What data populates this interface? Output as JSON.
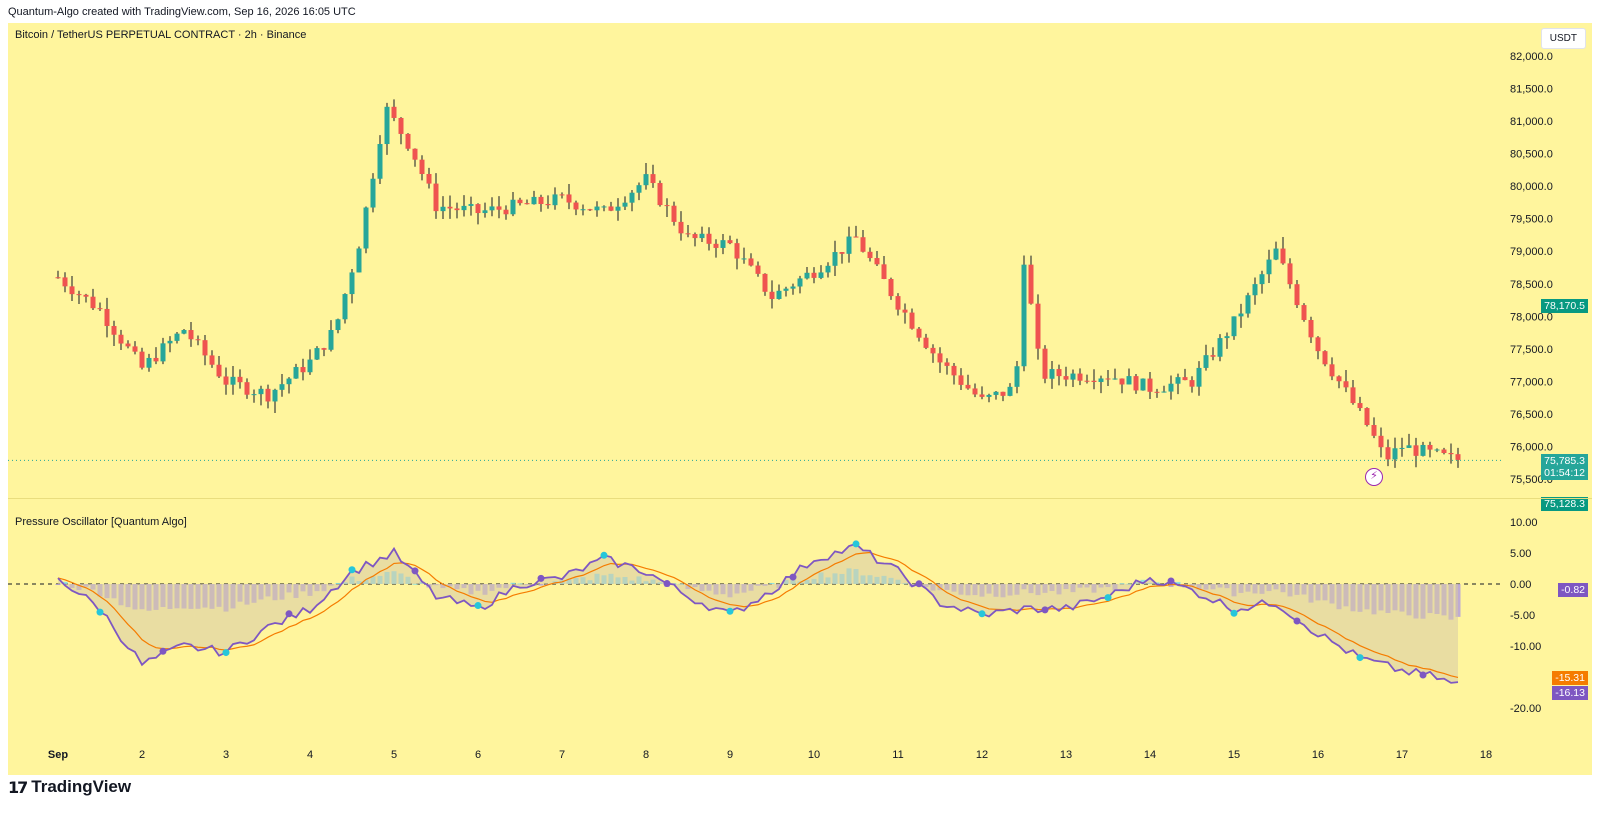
{
  "header": {
    "credit": "Quantum-Algo created with TradingView.com, Sep 16, 2026 16:05 UTC"
  },
  "symbol": {
    "title": "Bitcoin / TetherUS PERPETUAL CONTRACT · 2h · Binance",
    "currency": "USDT"
  },
  "price_axis": {
    "labels": [
      "82,000.0",
      "81,500.0",
      "81,000.0",
      "80,500.0",
      "80,000.0",
      "79,500.0",
      "79,000.0",
      "78,500.0",
      "78,000.0",
      "77,500.0",
      "77,000.0",
      "76,500.0",
      "76,000.0",
      "75,500.0"
    ],
    "values": [
      82000,
      81500,
      81000,
      80500,
      80000,
      79500,
      79000,
      78500,
      78000,
      77500,
      77000,
      76500,
      76000,
      75500
    ]
  },
  "price_tags": {
    "high_marker": {
      "label": "78,170.5",
      "value": 78170.5,
      "color": "#089981"
    },
    "last": {
      "label": "75,785.3",
      "countdown": "01:54:12",
      "value": 75785.3,
      "color": "#26a69a"
    },
    "low_marker": {
      "label": "75,128.3",
      "value": 75128.3,
      "color": "#089981"
    }
  },
  "oscillator": {
    "title": "Pressure Oscillator [Quantum Algo]",
    "axis_labels": [
      "10.00",
      "5.00",
      "0.00",
      "-5.00",
      "-10.00",
      "-20.00"
    ],
    "axis_values": [
      10,
      5,
      0,
      -5,
      -10,
      -20
    ],
    "tags": [
      {
        "label": "-0.82",
        "value": -0.82,
        "color": "#7e57c2"
      },
      {
        "label": "-15.31",
        "value": -15.31,
        "color": "#f57c00"
      },
      {
        "label": "-16.13",
        "value": -16.13,
        "color": "#7e57c2"
      }
    ]
  },
  "time_axis": {
    "labels": [
      "Sep",
      "2",
      "3",
      "4",
      "5",
      "6",
      "7",
      "8",
      "9",
      "10",
      "11",
      "12",
      "13",
      "14",
      "15",
      "16",
      "17",
      "18"
    ]
  },
  "footer": {
    "brand": "TradingView",
    "mark": "17"
  },
  "colors": {
    "background": "#fff59d",
    "up": "#26a69a",
    "down": "#ef5350",
    "wick": "#131722",
    "osc_line": "#7e57c2",
    "osc_signal": "#f57c00",
    "osc_bull": "#26c6da",
    "hist_pos": "#80deea",
    "hist_neg": "#b39ddb"
  },
  "chart_data": {
    "type": "candlestick",
    "title": "Bitcoin / TetherUS PERPETUAL CONTRACT · 2h · Binance",
    "ylim": [
      75000,
      82200
    ],
    "day_labels": [
      "Sep",
      "2",
      "3",
      "4",
      "5",
      "6",
      "7",
      "8",
      "9",
      "10",
      "11",
      "12",
      "13",
      "14",
      "15",
      "16",
      "17",
      "18"
    ],
    "close_path_days": [
      0,
      0.5,
      1,
      1.5,
      2,
      2.5,
      3,
      3.3,
      3.6,
      3.9,
      4.2,
      4.5,
      5,
      5.5,
      6,
      6.5,
      7,
      7.5,
      8,
      8.5,
      9,
      9.5,
      10,
      10.5,
      11,
      11.4,
      11.5,
      11.7,
      12,
      12.5,
      13,
      13.5,
      14,
      14.5,
      15,
      15.3,
      15.6,
      15.8,
      16,
      16.3,
      16.6
    ],
    "close_path_values": [
      78600,
      78100,
      77200,
      77800,
      77000,
      76800,
      77300,
      77800,
      79200,
      81200,
      80600,
      79700,
      79600,
      79700,
      79800,
      79600,
      80100,
      79200,
      79100,
      78300,
      78700,
      79200,
      78200,
      77300,
      76700,
      76900,
      78900,
      77100,
      77100,
      77100,
      76900,
      77000,
      77900,
      79000,
      77500,
      76900,
      76300,
      75800,
      76000,
      75900,
      75800
    ],
    "oscillator_days": [
      0,
      0.5,
      1,
      1.5,
      2,
      2.5,
      3,
      3.5,
      4,
      4.5,
      5,
      5.5,
      6,
      6.5,
      7,
      7.5,
      8,
      8.5,
      9,
      9.5,
      10,
      10.5,
      11,
      11.5,
      12,
      12.5,
      13,
      13.5,
      14,
      14.5,
      15,
      15.5,
      16,
      16.4,
      16.6
    ],
    "oscillator_values": [
      1,
      -4,
      -13,
      -10,
      -11,
      -7,
      -4,
      2,
      5,
      -2,
      -4,
      0,
      1,
      4,
      2,
      -2,
      -5,
      -1,
      4,
      6,
      2,
      -3,
      -5,
      -4,
      -4,
      -2,
      1,
      -1,
      -4,
      -3,
      -8,
      -12,
      -14,
      -15,
      -16.13
    ]
  }
}
